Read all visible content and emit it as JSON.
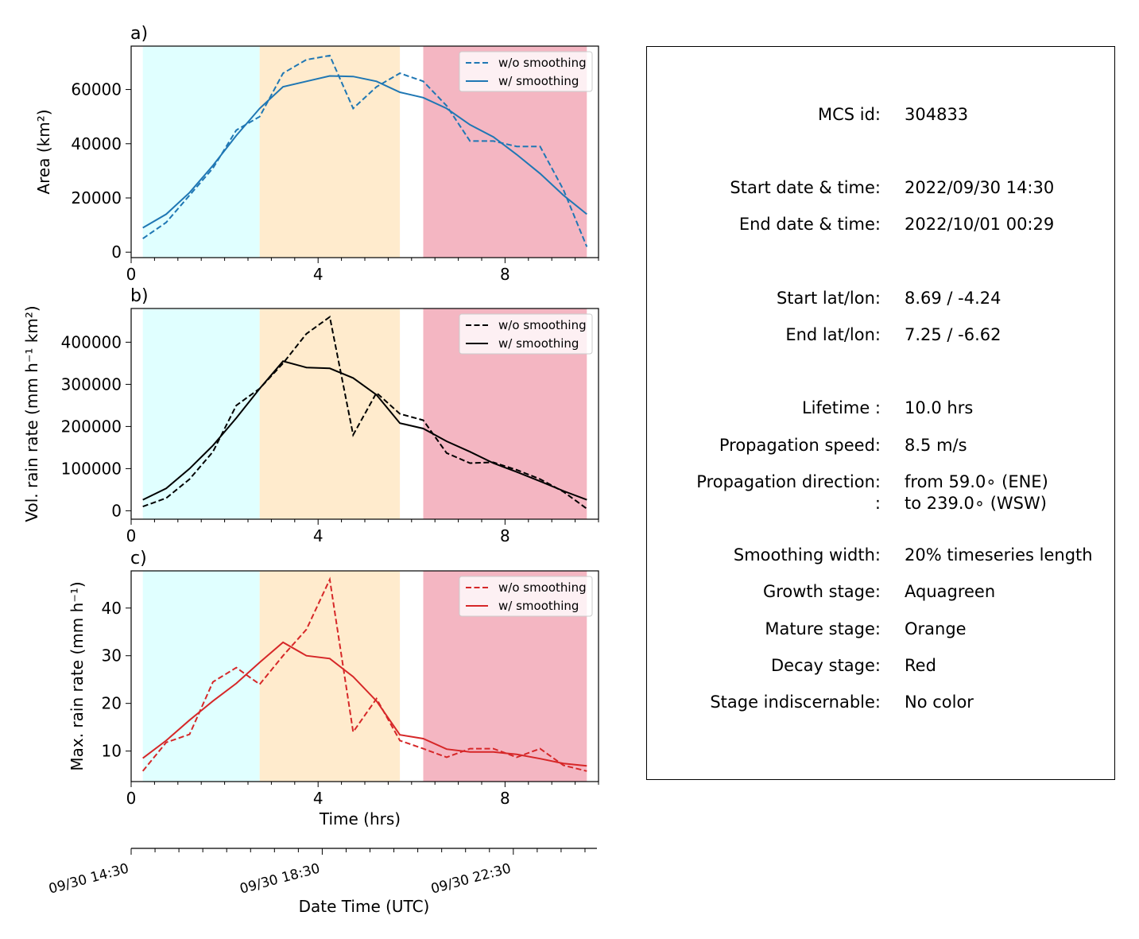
{
  "colors": {
    "growth": "#e0ffff",
    "mature": "#ffebcd",
    "decay": "#f4b6c2",
    "area": "#1f77b4",
    "volrain": "#000000",
    "maxrain": "#d62728"
  },
  "stages": [
    {
      "name": "growth",
      "start": 0.25,
      "end": 2.75
    },
    {
      "name": "mature",
      "start": 2.75,
      "end": 5.75
    },
    {
      "name": "decay",
      "start": 6.25,
      "end": 9.75
    }
  ],
  "legend": {
    "unsmoothed": "w/o smoothing",
    "smoothed": "w/ smoothing"
  },
  "chart_data": [
    {
      "type": "line",
      "panel_label": "a)",
      "ylabel": "Area  (km²)",
      "xlim": [
        0,
        10
      ],
      "ylim": [
        -2000,
        76000
      ],
      "x_ticks": [
        "0",
        "4",
        "8"
      ],
      "y_ticks": [
        "0",
        "20000",
        "40000",
        "60000"
      ],
      "x": [
        0.25,
        0.75,
        1.25,
        1.75,
        2.25,
        2.75,
        3.25,
        3.75,
        4.25,
        4.75,
        5.25,
        5.75,
        6.25,
        6.75,
        7.25,
        7.75,
        8.25,
        8.75,
        9.25,
        9.75
      ],
      "series": [
        {
          "name": "w/o smoothing",
          "style": "dashed",
          "values": [
            5000,
            11000,
            21000,
            31000,
            45000,
            50000,
            66000,
            71000,
            72500,
            53000,
            61000,
            66000,
            63000,
            54000,
            41000,
            41000,
            39000,
            39000,
            23000,
            2000
          ]
        },
        {
          "name": "w/ smoothing",
          "style": "solid",
          "values": [
            9000,
            14000,
            22000,
            32000,
            43000,
            53000,
            61000,
            63000,
            65000,
            64800,
            63000,
            59000,
            57000,
            53000,
            47000,
            42500,
            36000,
            29000,
            21000,
            14000
          ]
        }
      ]
    },
    {
      "type": "line",
      "panel_label": "b)",
      "ylabel": "Vol. rain rate (mm h⁻¹ km²)",
      "xlim": [
        0,
        10
      ],
      "ylim": [
        -20000,
        480000
      ],
      "x_ticks": [
        "0",
        "4",
        "8"
      ],
      "y_ticks": [
        "0",
        "100000",
        "200000",
        "300000",
        "400000"
      ],
      "x": [
        0.25,
        0.75,
        1.25,
        1.75,
        2.25,
        2.75,
        3.25,
        3.75,
        4.25,
        4.75,
        5.25,
        5.75,
        6.25,
        6.75,
        7.25,
        7.75,
        8.25,
        8.75,
        9.25,
        9.75
      ],
      "series": [
        {
          "name": "w/o smoothing",
          "style": "dashed",
          "values": [
            10000,
            30000,
            75000,
            140000,
            250000,
            290000,
            350000,
            420000,
            460000,
            180000,
            280000,
            230000,
            215000,
            137000,
            113000,
            115000,
            97000,
            75000,
            45000,
            5000
          ]
        },
        {
          "name": "w/ smoothing",
          "style": "solid",
          "values": [
            26000,
            53000,
            100000,
            155000,
            220000,
            290000,
            355000,
            340000,
            338000,
            315000,
            275000,
            208000,
            195000,
            165000,
            140000,
            113000,
            92000,
            70000,
            47000,
            26000
          ]
        }
      ]
    },
    {
      "type": "line",
      "panel_label": "c)",
      "ylabel": "Max. rain rate  (mm h⁻¹)",
      "xlabel": "Time (hrs)",
      "xlim": [
        0,
        10
      ],
      "ylim": [
        3.6,
        47.8
      ],
      "x_ticks": [
        "0",
        "4",
        "8"
      ],
      "y_ticks": [
        "10",
        "20",
        "30",
        "40"
      ],
      "x": [
        0.25,
        0.75,
        1.25,
        1.75,
        2.25,
        2.75,
        3.25,
        3.75,
        4.25,
        4.75,
        5.25,
        5.75,
        6.25,
        6.75,
        7.25,
        7.75,
        8.25,
        8.75,
        9.25,
        9.75
      ],
      "series": [
        {
          "name": "w/o smoothing",
          "style": "dashed",
          "values": [
            5.8,
            11.8,
            13.5,
            24.5,
            27.5,
            24.0,
            30.0,
            35.5,
            46.0,
            14.0,
            21.0,
            12.2,
            10.5,
            8.7,
            10.5,
            10.5,
            8.7,
            10.5,
            7.0,
            5.8
          ]
        },
        {
          "name": "w/ smoothing",
          "style": "solid",
          "values": [
            8.5,
            12.2,
            16.5,
            20.5,
            24.2,
            28.6,
            32.8,
            30.0,
            29.4,
            25.6,
            20.5,
            13.4,
            12.6,
            10.4,
            9.8,
            9.8,
            9.3,
            8.4,
            7.4,
            6.9
          ]
        }
      ]
    }
  ],
  "date_axis": {
    "label": "Date Time (UTC)",
    "ticks": [
      "09/30 14:30",
      "09/30 18:30",
      "09/30 22:30"
    ]
  },
  "info": [
    {
      "label": "MCS id:",
      "value": "304833"
    },
    {
      "label": "Start date & time:",
      "value": "2022/09/30 14:30"
    },
    {
      "label": "End date & time:",
      "value": "2022/10/01 00:29"
    },
    {
      "label": "Start lat/lon:",
      "value": "8.69 / -4.24"
    },
    {
      "label": "End lat/lon:",
      "value": "7.25 / -6.62"
    },
    {
      "label": "Lifetime :",
      "value": "10.0 hrs"
    },
    {
      "label": "Propagation speed:",
      "value": "8.5 m/s"
    },
    {
      "label": "Propagation direction:",
      "value": "from  59.0∘ (ENE)"
    },
    {
      "label": ":",
      "value": "to   239.0∘ (WSW)"
    },
    {
      "label": "Smoothing width:",
      "value": "20% timeseries length"
    },
    {
      "label": "Growth stage:",
      "value": "Aquagreen"
    },
    {
      "label": "Mature stage:",
      "value": "Orange"
    },
    {
      "label": "Decay stage:",
      "value": "Red"
    },
    {
      "label": "Stage indiscernable:",
      "value": "No color"
    }
  ]
}
